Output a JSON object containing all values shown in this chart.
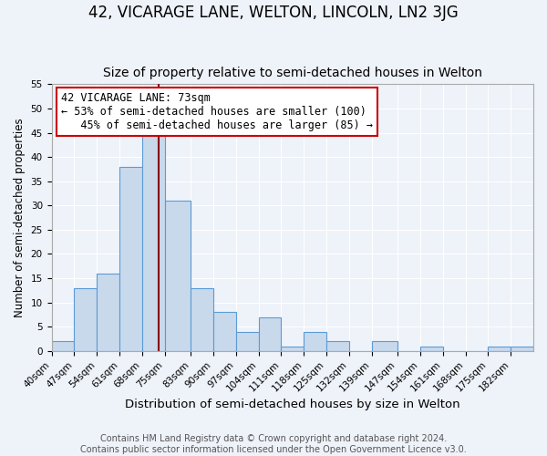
{
  "title": "42, VICARAGE LANE, WELTON, LINCOLN, LN2 3JG",
  "subtitle": "Size of property relative to semi-detached houses in Welton",
  "xlabel": "Distribution of semi-detached houses by size in Welton",
  "ylabel": "Number of semi-detached properties",
  "bin_labels": [
    "40sqm",
    "47sqm",
    "54sqm",
    "61sqm",
    "68sqm",
    "75sqm",
    "83sqm",
    "90sqm",
    "97sqm",
    "104sqm",
    "111sqm",
    "118sqm",
    "125sqm",
    "132sqm",
    "139sqm",
    "147sqm",
    "154sqm",
    "161sqm",
    "168sqm",
    "175sqm",
    "182sqm"
  ],
  "bin_edges": [
    40,
    47,
    54,
    61,
    68,
    75,
    83,
    90,
    97,
    104,
    111,
    118,
    125,
    132,
    139,
    147,
    154,
    161,
    168,
    175,
    182
  ],
  "counts": [
    2,
    13,
    16,
    38,
    46,
    31,
    13,
    8,
    4,
    7,
    1,
    4,
    2,
    0,
    2,
    0,
    1,
    0,
    0,
    1,
    1
  ],
  "bar_color": "#c9d9ec",
  "bar_edge_color": "#5b9bd5",
  "property_value": 73,
  "marker_line_color": "#8b0000",
  "annotation_line1": "42 VICARAGE LANE: 73sqm",
  "annotation_line2": "← 53% of semi-detached houses are smaller (100)",
  "annotation_line3": "   45% of semi-detached houses are larger (85) →",
  "annotation_box_color": "#ffffff",
  "annotation_box_edge_color": "#cc0000",
  "ylim": [
    0,
    55
  ],
  "yticks": [
    0,
    5,
    10,
    15,
    20,
    25,
    30,
    35,
    40,
    45,
    50,
    55
  ],
  "background_color": "#eef2f9",
  "footer_line1": "Contains HM Land Registry data © Crown copyright and database right 2024.",
  "footer_line2": "Contains public sector information licensed under the Open Government Licence v3.0.",
  "title_fontsize": 12,
  "subtitle_fontsize": 10,
  "xlabel_fontsize": 9.5,
  "ylabel_fontsize": 8.5,
  "tick_fontsize": 7.5,
  "annotation_fontsize": 8.5,
  "footer_fontsize": 7
}
